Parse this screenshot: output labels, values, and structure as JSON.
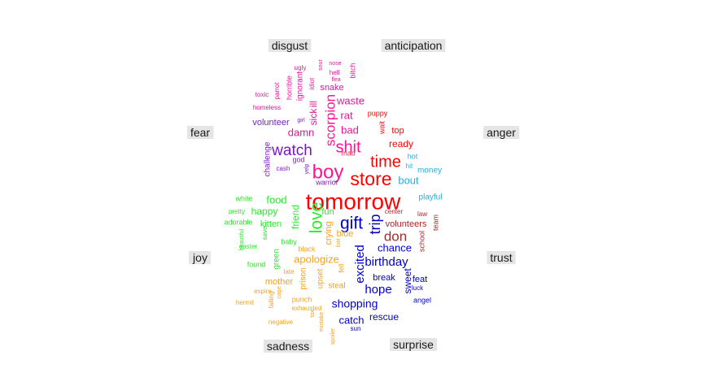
{
  "chart_data": {
    "type": "comparison-wordcloud",
    "title": "",
    "categories": [
      {
        "name": "disgust",
        "color": "#e0179b"
      },
      {
        "name": "anticipation",
        "color": "#ff0000"
      },
      {
        "name": "fear",
        "color": "#7c1fc1"
      },
      {
        "name": "anger",
        "color": "#ff1e4c"
      },
      {
        "name": "joy",
        "color": "#22ee22"
      },
      {
        "name": "trust",
        "color": "#a52a2a"
      },
      {
        "name": "sadness",
        "color": "#f5a21b"
      },
      {
        "name": "surprise",
        "color": "#1010cc"
      }
    ],
    "words": [
      {
        "text": "tomorrow",
        "category": "anticipation",
        "color": "#ff0000",
        "size": 28
      },
      {
        "text": "store",
        "category": "anticipation",
        "color": "#ff0000",
        "size": 23
      },
      {
        "text": "time",
        "category": "anticipation",
        "color": "#ff0000",
        "size": 20
      },
      {
        "text": "boy",
        "category": "disgust",
        "color": "#ff1493",
        "size": 24
      },
      {
        "text": "shit",
        "category": "disgust",
        "color": "#ff1493",
        "size": 20
      },
      {
        "text": "scorpion",
        "category": "disgust",
        "color": "#ff1493",
        "size": 17,
        "rotate": true
      },
      {
        "text": "watch",
        "category": "fear",
        "color": "#7b14c9",
        "size": 19
      },
      {
        "text": "gift",
        "category": "surprise",
        "color": "#0000cd",
        "size": 21
      },
      {
        "text": "love",
        "category": "joy",
        "color": "#22ee22",
        "size": 21,
        "rotate": true
      },
      {
        "text": "trip",
        "category": "surprise",
        "color": "#0000cd",
        "size": 18,
        "rotate": true
      },
      {
        "text": "don",
        "category": "trust",
        "color": "#a52a2a",
        "size": 17
      },
      {
        "text": "birthday",
        "category": "surprise",
        "color": "#0000cd",
        "size": 15
      },
      {
        "text": "excited",
        "category": "surprise",
        "color": "#0000cd",
        "size": 15,
        "rotate": true
      },
      {
        "text": "hope",
        "category": "surprise",
        "color": "#0000cd",
        "size": 15
      },
      {
        "text": "shopping",
        "category": "surprise",
        "color": "#0000cd",
        "size": 14
      },
      {
        "text": "chance",
        "category": "surprise",
        "color": "#0000cd",
        "size": 13
      },
      {
        "text": "sweet",
        "category": "surprise",
        "color": "#0000cd",
        "size": 12,
        "rotate": true
      },
      {
        "text": "catch",
        "category": "surprise",
        "color": "#0000cd",
        "size": 13
      },
      {
        "text": "rescue",
        "category": "surprise",
        "color": "#0000cd",
        "size": 12
      },
      {
        "text": "break",
        "category": "surprise",
        "color": "#0000cd",
        "size": 11
      },
      {
        "text": "feat",
        "category": "surprise",
        "color": "#0000cd",
        "size": 11
      },
      {
        "text": "luck",
        "category": "surprise",
        "color": "#0000cd",
        "size": 8
      },
      {
        "text": "angel",
        "category": "surprise",
        "color": "#0000cd",
        "size": 9
      },
      {
        "text": "sun",
        "category": "surprise",
        "color": "#0000cd",
        "size": 8
      },
      {
        "text": "damn",
        "category": "disgust",
        "color": "#e0179b",
        "size": 13
      },
      {
        "text": "bad",
        "category": "disgust",
        "color": "#e0179b",
        "size": 13
      },
      {
        "text": "rat",
        "category": "disgust",
        "color": "#e0179b",
        "size": 13
      },
      {
        "text": "waste",
        "category": "disgust",
        "color": "#e0179b",
        "size": 13
      },
      {
        "text": "ill",
        "category": "disgust",
        "color": "#e0179b",
        "size": 12,
        "rotate": true
      },
      {
        "text": "sick",
        "category": "disgust",
        "color": "#e0179b",
        "size": 12,
        "rotate": true
      },
      {
        "text": "snake",
        "category": "disgust",
        "color": "#e0179b",
        "size": 11
      },
      {
        "text": "ignorant",
        "category": "disgust",
        "color": "#e0179b",
        "size": 10,
        "rotate": true
      },
      {
        "text": "horrible",
        "category": "disgust",
        "color": "#e0179b",
        "size": 9,
        "rotate": true
      },
      {
        "text": "ugly",
        "category": "disgust",
        "color": "#e0179b",
        "size": 8
      },
      {
        "text": "parrot",
        "category": "disgust",
        "color": "#e0179b",
        "size": 8,
        "rotate": true
      },
      {
        "text": "idiot",
        "category": "disgust",
        "color": "#e0179b",
        "size": 8,
        "rotate": true
      },
      {
        "text": "sour",
        "category": "disgust",
        "color": "#e0179b",
        "size": 7,
        "rotate": true
      },
      {
        "text": "nose",
        "category": "disgust",
        "color": "#e0179b",
        "size": 7
      },
      {
        "text": "hell",
        "category": "disgust",
        "color": "#e0179b",
        "size": 8
      },
      {
        "text": "flea",
        "category": "disgust",
        "color": "#e0179b",
        "size": 7
      },
      {
        "text": "bitch",
        "category": "disgust",
        "color": "#e0179b",
        "size": 9,
        "rotate": true
      },
      {
        "text": "toxic",
        "category": "disgust",
        "color": "#e0179b",
        "size": 8
      },
      {
        "text": "homeless",
        "category": "disgust",
        "color": "#e0179b",
        "size": 8
      },
      {
        "text": "volunteer",
        "category": "fear",
        "color": "#7c1fc1",
        "size": 11
      },
      {
        "text": "challenge",
        "category": "fear",
        "color": "#7c1fc1",
        "size": 10,
        "rotate": true
      },
      {
        "text": "god",
        "category": "fear",
        "color": "#7c1fc1",
        "size": 9
      },
      {
        "text": "cash",
        "category": "fear",
        "color": "#7c1fc1",
        "size": 8
      },
      {
        "text": "yelp",
        "category": "fear",
        "color": "#7c1fc1",
        "size": 7,
        "rotate": true
      },
      {
        "text": "warrior",
        "category": "fear",
        "color": "#7c1fc1",
        "size": 9
      },
      {
        "text": "girl",
        "category": "fear",
        "color": "#7c1fc1",
        "size": 7
      },
      {
        "text": "mad",
        "category": "anger",
        "color": "#ff1e4c",
        "size": 9
      },
      {
        "text": "puppy",
        "category": "anticipation",
        "color": "#ff0000",
        "size": 9
      },
      {
        "text": "wait",
        "category": "anticipation",
        "color": "#ff0000",
        "size": 9,
        "rotate": true
      },
      {
        "text": "top",
        "category": "anticipation",
        "color": "#ff0000",
        "size": 11
      },
      {
        "text": "ready",
        "category": "anticipation",
        "color": "#ff0000",
        "size": 12
      },
      {
        "text": "hot",
        "category": "anger",
        "color": "#1eafe0",
        "size": 9
      },
      {
        "text": "hit",
        "category": "anger",
        "color": "#1eafe0",
        "size": 8
      },
      {
        "text": "money",
        "category": "anger",
        "color": "#1eafe0",
        "size": 10
      },
      {
        "text": "bout",
        "category": "anger",
        "color": "#1eafe0",
        "size": 13
      },
      {
        "text": "playful",
        "category": "anger",
        "color": "#1eafe0",
        "size": 10
      },
      {
        "text": "food",
        "category": "joy",
        "color": "#22ee22",
        "size": 13
      },
      {
        "text": "happy",
        "category": "joy",
        "color": "#22ee22",
        "size": 12
      },
      {
        "text": "kitten",
        "category": "joy",
        "color": "#22ee22",
        "size": 11
      },
      {
        "text": "friend",
        "category": "joy",
        "color": "#22ee22",
        "size": 12,
        "rotate": true
      },
      {
        "text": "fun",
        "category": "joy",
        "color": "#22ee22",
        "size": 11
      },
      {
        "text": "white",
        "category": "joy",
        "color": "#22ee22",
        "size": 9
      },
      {
        "text": "pretty",
        "category": "joy",
        "color": "#22ee22",
        "size": 8
      },
      {
        "text": "adorable",
        "category": "joy",
        "color": "#22ee22",
        "size": 9
      },
      {
        "text": "beautiful",
        "category": "joy",
        "color": "#22ee22",
        "size": 7,
        "rotate": true
      },
      {
        "text": "save",
        "category": "joy",
        "color": "#22ee22",
        "size": 8,
        "rotate": true
      },
      {
        "text": "easter",
        "category": "joy",
        "color": "#22ee22",
        "size": 8
      },
      {
        "text": "baby",
        "category": "joy",
        "color": "#22ee22",
        "size": 9
      },
      {
        "text": "found",
        "category": "joy",
        "color": "#22ee22",
        "size": 9
      },
      {
        "text": "green",
        "category": "joy",
        "color": "#22ee22",
        "size": 10,
        "rotate": true
      },
      {
        "text": "volunteers",
        "category": "trust",
        "color": "#a52a2a",
        "size": 11
      },
      {
        "text": "center",
        "category": "trust",
        "color": "#a52a2a",
        "size": 8
      },
      {
        "text": "law",
        "category": "trust",
        "color": "#a52a2a",
        "size": 8
      },
      {
        "text": "team",
        "category": "trust",
        "color": "#a52a2a",
        "size": 9,
        "rotate": true
      },
      {
        "text": "school",
        "category": "trust",
        "color": "#a52a2a",
        "size": 9,
        "rotate": true
      },
      {
        "text": "apologize",
        "category": "sadness",
        "color": "#f5a21b",
        "size": 13
      },
      {
        "text": "crying",
        "category": "sadness",
        "color": "#f5a21b",
        "size": 11,
        "rotate": true
      },
      {
        "text": "blue",
        "category": "sadness",
        "color": "#f5a21b",
        "size": 11
      },
      {
        "text": "black",
        "category": "sadness",
        "color": "#f5a21b",
        "size": 9
      },
      {
        "text": "late",
        "category": "sadness",
        "color": "#f5a21b",
        "size": 8
      },
      {
        "text": "mother",
        "category": "sadness",
        "color": "#f5a21b",
        "size": 11
      },
      {
        "text": "prison",
        "category": "sadness",
        "color": "#f5a21b",
        "size": 10,
        "rotate": true
      },
      {
        "text": "upset",
        "category": "sadness",
        "color": "#f5a21b",
        "size": 10,
        "rotate": true
      },
      {
        "text": "fell",
        "category": "sadness",
        "color": "#f5a21b",
        "size": 9,
        "rotate": true
      },
      {
        "text": "lost",
        "category": "sadness",
        "color": "#f5a21b",
        "size": 7,
        "rotate": true
      },
      {
        "text": "steal",
        "category": "sadness",
        "color": "#f5a21b",
        "size": 10
      },
      {
        "text": "expire",
        "category": "sadness",
        "color": "#f5a21b",
        "size": 8
      },
      {
        "text": "cage",
        "category": "sadness",
        "color": "#f5a21b",
        "size": 7,
        "rotate": true
      },
      {
        "text": "falling",
        "category": "sadness",
        "color": "#f5a21b",
        "size": 8,
        "rotate": true
      },
      {
        "text": "punch",
        "category": "sadness",
        "color": "#f5a21b",
        "size": 9
      },
      {
        "text": "exhausted",
        "category": "sadness",
        "color": "#f5a21b",
        "size": 8
      },
      {
        "text": "hermit",
        "category": "sadness",
        "color": "#f5a21b",
        "size": 8
      },
      {
        "text": "negative",
        "category": "sadness",
        "color": "#f5a21b",
        "size": 8
      },
      {
        "text": "tax",
        "category": "sadness",
        "color": "#f5a21b",
        "size": 7,
        "rotate": true
      },
      {
        "text": "mistake",
        "category": "sadness",
        "color": "#f5a21b",
        "size": 7,
        "rotate": true
      },
      {
        "text": "spoiler",
        "category": "sadness",
        "color": "#f5a21b",
        "size": 7,
        "rotate": true
      }
    ]
  }
}
